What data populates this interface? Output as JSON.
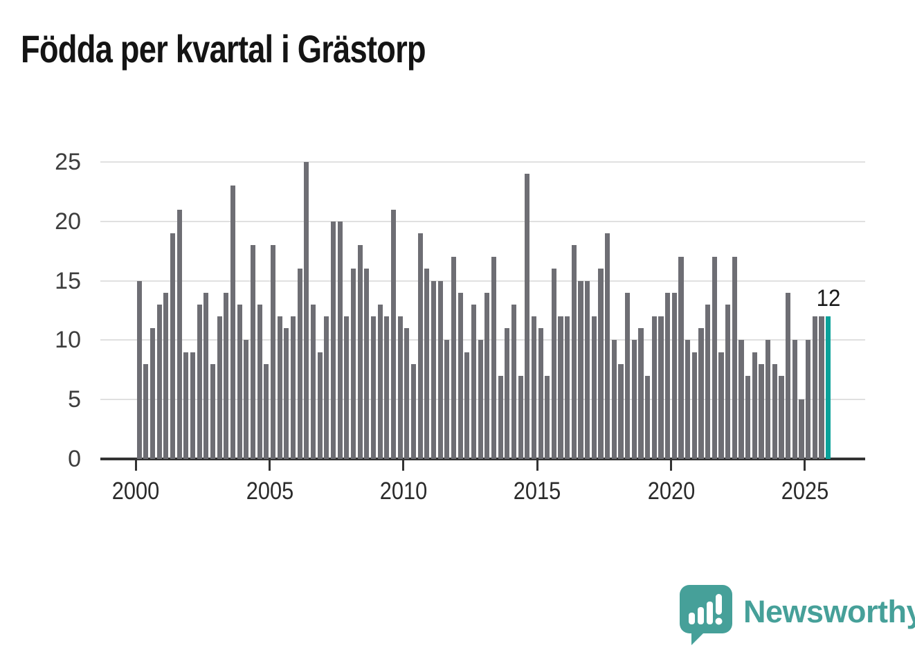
{
  "title": "Födda per kvartal i Grästorp",
  "annotation_label": "12",
  "logo": {
    "text": "Newsworthy",
    "color": "#46a099",
    "icon": "newsworthy-speech-bubble-chart-icon"
  },
  "chart_data": {
    "type": "bar",
    "title": "Födda per kvartal i Grästorp",
    "series_name": "Födda per kvartal",
    "x_unit": "quarter",
    "x_start": "2000 Q1",
    "x_end": "2025 Q4",
    "values_by_year": {
      "2000": [
        15,
        8,
        11,
        13
      ],
      "2001": [
        14,
        19,
        21,
        9
      ],
      "2002": [
        9,
        13,
        14,
        8
      ],
      "2003": [
        12,
        14,
        23,
        13
      ],
      "2004": [
        10,
        18,
        13,
        8
      ],
      "2005": [
        18,
        12,
        11,
        12
      ],
      "2006": [
        16,
        25,
        13,
        9
      ],
      "2007": [
        12,
        20,
        20,
        12
      ],
      "2008": [
        16,
        18,
        16,
        12
      ],
      "2009": [
        13,
        12,
        21,
        12
      ],
      "2010": [
        11,
        8,
        19,
        16
      ],
      "2011": [
        15,
        15,
        10,
        17
      ],
      "2012": [
        14,
        9,
        13,
        10
      ],
      "2013": [
        14,
        17,
        7,
        11
      ],
      "2014": [
        13,
        7,
        24,
        12
      ],
      "2015": [
        11,
        7,
        16,
        12
      ],
      "2016": [
        12,
        18,
        15,
        15
      ],
      "2017": [
        12,
        16,
        19,
        10
      ],
      "2018": [
        8,
        14,
        10,
        11
      ],
      "2019": [
        7,
        12,
        12,
        14
      ],
      "2020": [
        14,
        17,
        10,
        9
      ],
      "2021": [
        11,
        13,
        17,
        9
      ],
      "2022": [
        13,
        17,
        10,
        7
      ],
      "2023": [
        9,
        8,
        10,
        8
      ],
      "2024": [
        7,
        14,
        10,
        5
      ],
      "2025": [
        10,
        12,
        12,
        12
      ]
    },
    "highlight": {
      "quarter": "2025 Q4",
      "value": 12,
      "annotation": "12"
    },
    "ylim": [
      0,
      25
    ],
    "y_ticks": [
      0,
      5,
      10,
      15,
      20,
      25
    ],
    "x_tick_labels": [
      "2000",
      "2005",
      "2010",
      "2015",
      "2020",
      "2025"
    ],
    "grid": "horizontal",
    "legend": "none",
    "bar_color": "#6e6e74",
    "highlight_color": "#0aa29a",
    "axis_color": "#333333",
    "grid_color": "#e0e0e0"
  }
}
